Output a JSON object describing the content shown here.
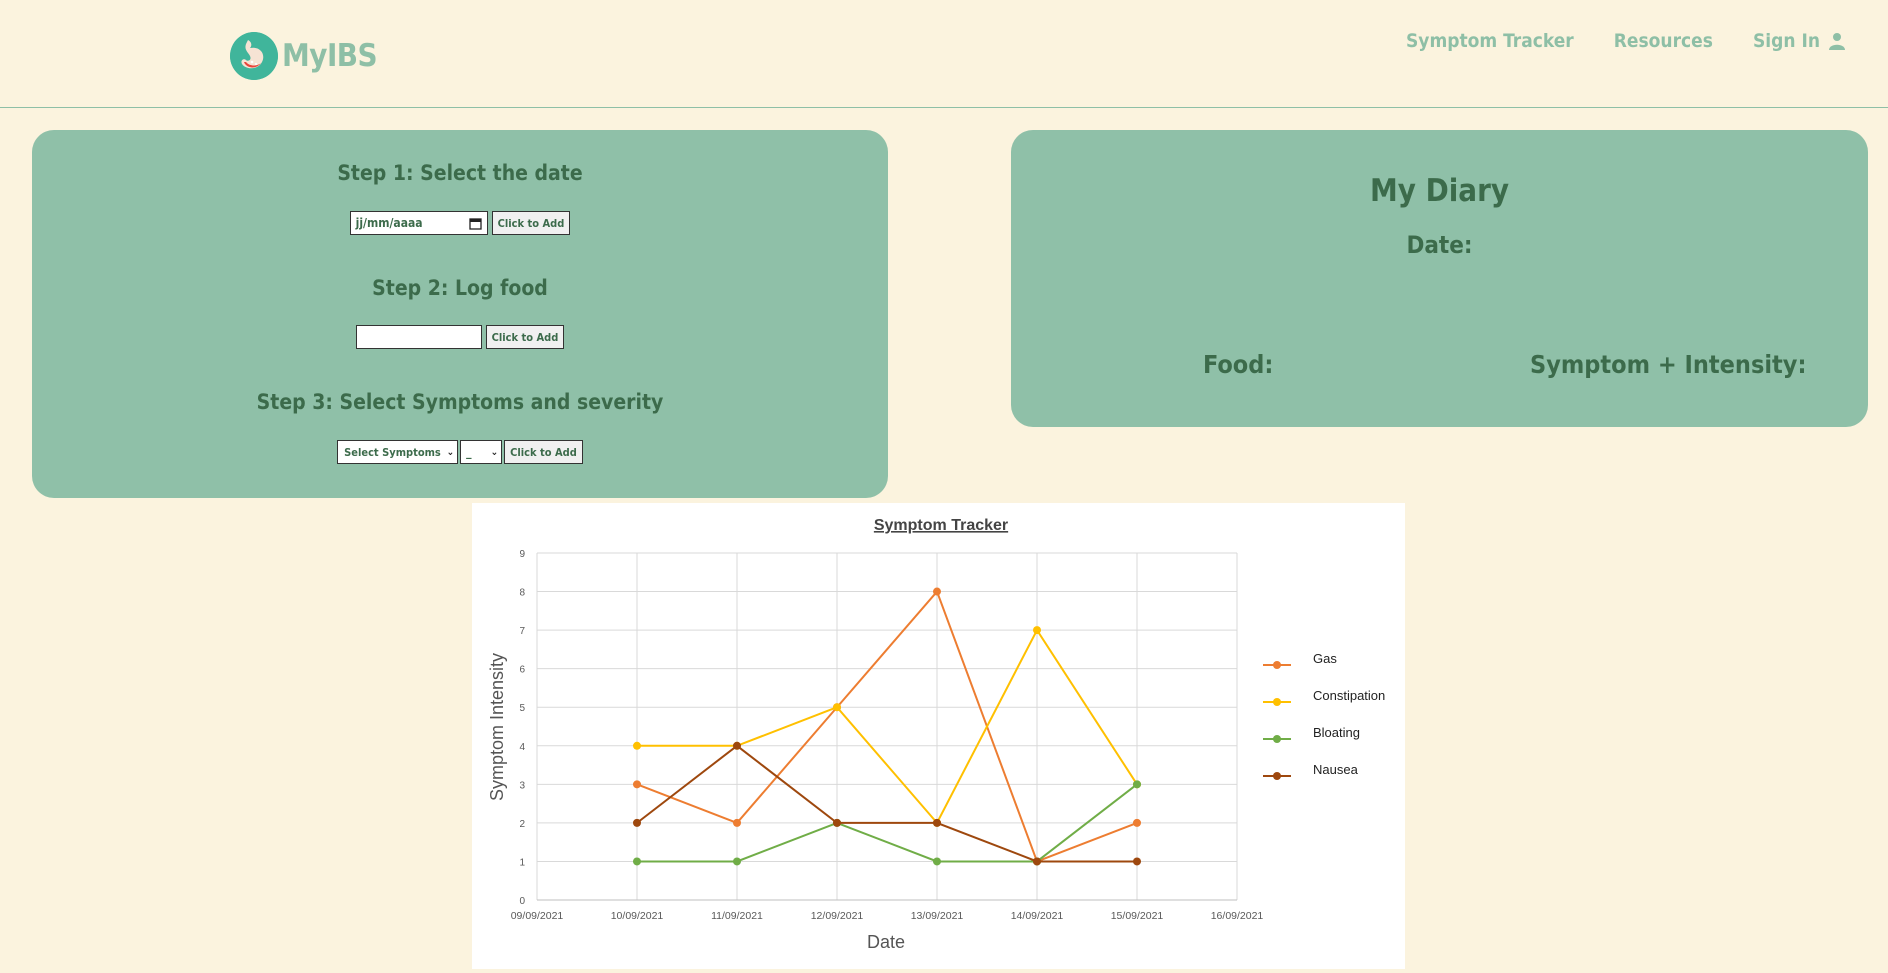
{
  "brand": {
    "name": "MyIBS"
  },
  "nav": {
    "symptom_tracker": "Symptom Tracker",
    "resources": "Resources",
    "sign_in": "Sign In"
  },
  "steps": {
    "step1_title": "Step 1: Select the date",
    "date_placeholder": "jj/mm/aaaa",
    "step2_title": "Step 2: Log food",
    "food_value": "",
    "step3_title": "Step 3: Select Symptoms and severity",
    "symptom_select": "Select Symptoms",
    "severity_select": "_",
    "add_label": "Click to Add"
  },
  "diary": {
    "title": "My Diary",
    "date_label": "Date:",
    "food_label": "Food:",
    "symptom_label": "Symptom + Intensity:"
  },
  "chart_data": {
    "type": "line",
    "title": "Symptom Tracker",
    "xlabel": "Date",
    "ylabel": "Symptom Intensity",
    "x_ticks": [
      "09/09/2021",
      "10/09/2021",
      "11/09/2021",
      "12/09/2021",
      "13/09/2021",
      "14/09/2021",
      "15/09/2021",
      "16/09/2021"
    ],
    "x": [
      "10/09/2021",
      "11/09/2021",
      "12/09/2021",
      "13/09/2021",
      "14/09/2021",
      "15/09/2021"
    ],
    "ylim": [
      0,
      9
    ],
    "grid": true,
    "legend": "right",
    "series": [
      {
        "name": "Gas",
        "color": "#ed7d31",
        "values": [
          3,
          2,
          5,
          8,
          1,
          2
        ]
      },
      {
        "name": "Constipation",
        "color": "#ffc000",
        "values": [
          4,
          4,
          5,
          2,
          7,
          3
        ]
      },
      {
        "name": "Bloating",
        "color": "#70ad47",
        "values": [
          1,
          1,
          2,
          1,
          1,
          3
        ]
      },
      {
        "name": "Nausea",
        "color": "#9e480e",
        "values": [
          2,
          4,
          2,
          2,
          1,
          1
        ]
      }
    ]
  }
}
